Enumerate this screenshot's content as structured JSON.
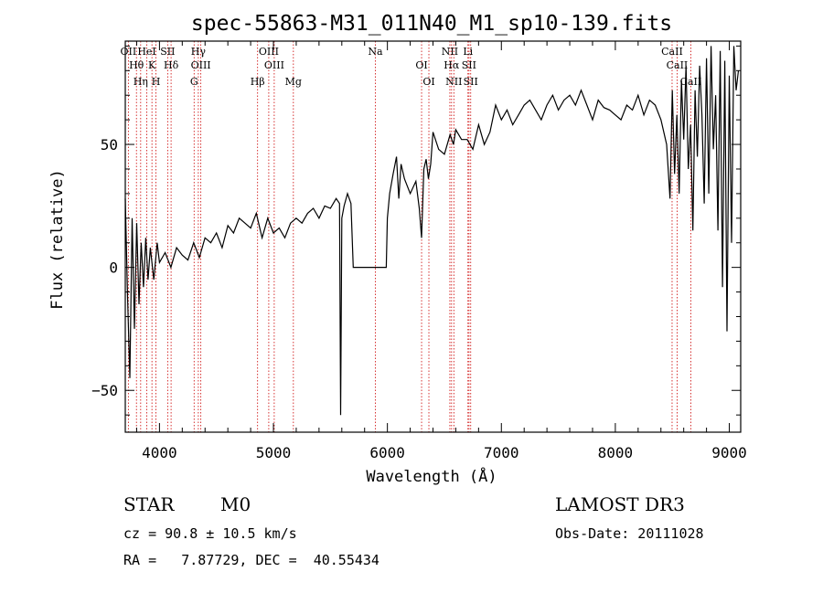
{
  "chart_data": {
    "type": "line",
    "title": "spec-55863-M31_011N40_M1_sp10-139.fits",
    "xlabel": "Wavelength (Å)",
    "ylabel": "Flux (relative)",
    "xlim": [
      3700,
      9100
    ],
    "ylim": [
      -67,
      92
    ],
    "xticks": [
      4000,
      5000,
      6000,
      7000,
      8000,
      9000
    ],
    "yticks": [
      -50,
      0,
      50
    ],
    "series": [
      {
        "name": "spectrum",
        "x": [
          3700,
          3720,
          3740,
          3760,
          3780,
          3800,
          3820,
          3840,
          3860,
          3880,
          3900,
          3920,
          3950,
          3980,
          4000,
          4050,
          4100,
          4150,
          4200,
          4250,
          4300,
          4350,
          4400,
          4450,
          4500,
          4550,
          4600,
          4650,
          4700,
          4750,
          4800,
          4850,
          4900,
          4950,
          5000,
          5050,
          5100,
          5150,
          5200,
          5250,
          5300,
          5350,
          5400,
          5450,
          5500,
          5550,
          5580,
          5590,
          5600,
          5620,
          5650,
          5680,
          5700,
          5750,
          5800,
          5850,
          5900,
          5950,
          5990,
          6000,
          6020,
          6050,
          6080,
          6100,
          6120,
          6150,
          6200,
          6250,
          6280,
          6300,
          6320,
          6340,
          6360,
          6380,
          6400,
          6450,
          6500,
          6550,
          6580,
          6600,
          6650,
          6700,
          6750,
          6800,
          6850,
          6900,
          6950,
          7000,
          7050,
          7100,
          7150,
          7200,
          7250,
          7300,
          7350,
          7400,
          7450,
          7500,
          7550,
          7600,
          7650,
          7700,
          7750,
          7800,
          7850,
          7900,
          7950,
          8000,
          8050,
          8100,
          8150,
          8200,
          8250,
          8300,
          8350,
          8400,
          8450,
          8480,
          8500,
          8520,
          8540,
          8560,
          8580,
          8600,
          8620,
          8640,
          8660,
          8680,
          8700,
          8720,
          8740,
          8760,
          8780,
          8800,
          8820,
          8840,
          8860,
          8880,
          8900,
          8920,
          8940,
          8960,
          8980,
          9000,
          9020,
          9040,
          9060,
          9080
        ],
        "y": [
          28,
          -12,
          -45,
          20,
          -25,
          18,
          -15,
          10,
          -8,
          12,
          -5,
          8,
          -5,
          10,
          2,
          6,
          0,
          8,
          5,
          3,
          10,
          4,
          12,
          10,
          14,
          8,
          17,
          14,
          20,
          18,
          16,
          22,
          12,
          20,
          14,
          16,
          12,
          18,
          20,
          18,
          22,
          24,
          20,
          25,
          24,
          28,
          26,
          -60,
          20,
          25,
          30,
          26,
          0,
          0,
          0,
          0,
          0,
          0,
          0,
          20,
          30,
          38,
          45,
          28,
          42,
          36,
          30,
          35,
          24,
          12,
          40,
          44,
          36,
          42,
          55,
          48,
          46,
          54,
          50,
          56,
          52,
          52,
          48,
          58,
          50,
          55,
          66,
          60,
          64,
          58,
          62,
          66,
          68,
          64,
          60,
          66,
          70,
          64,
          68,
          70,
          66,
          72,
          66,
          60,
          68,
          65,
          64,
          62,
          60,
          66,
          64,
          70,
          62,
          68,
          66,
          60,
          50,
          28,
          72,
          38,
          62,
          30,
          76,
          52,
          82,
          40,
          58,
          15,
          72,
          45,
          82,
          62,
          26,
          85,
          30,
          90,
          48,
          70,
          15,
          88,
          -8,
          84,
          -26,
          78,
          10,
          90,
          72,
          80
        ]
      }
    ],
    "emission_lines": [
      {
        "name": "OII",
        "wavelength": 3727
      },
      {
        "name": "Hθ",
        "wavelength": 3798
      },
      {
        "name": "Hη",
        "wavelength": 3835
      },
      {
        "name": "HeI",
        "wavelength": 3889
      },
      {
        "name": "K",
        "wavelength": 3934
      },
      {
        "name": "H",
        "wavelength": 3969
      },
      {
        "name": "SII",
        "wavelength": 4072
      },
      {
        "name": "Hδ",
        "wavelength": 4102
      },
      {
        "name": "G",
        "wavelength": 4304
      },
      {
        "name": "Hγ",
        "wavelength": 4341
      },
      {
        "name": "OIII",
        "wavelength": 4363
      },
      {
        "name": "Hβ",
        "wavelength": 4861
      },
      {
        "name": "OIII",
        "wavelength": 4959
      },
      {
        "name": "OIII",
        "wavelength": 5007
      },
      {
        "name": "Mg",
        "wavelength": 5175
      },
      {
        "name": "Na",
        "wavelength": 5894
      },
      {
        "name": "OI",
        "wavelength": 6300
      },
      {
        "name": "OI",
        "wavelength": 6364
      },
      {
        "name": "NII",
        "wavelength": 6548
      },
      {
        "name": "Hα",
        "wavelength": 6563
      },
      {
        "name": "NII",
        "wavelength": 6583
      },
      {
        "name": "Li",
        "wavelength": 6707
      },
      {
        "name": "SII",
        "wavelength": 6716
      },
      {
        "name": "SII",
        "wavelength": 6731
      },
      {
        "name": "CaII",
        "wavelength": 8498
      },
      {
        "name": "CaII",
        "wavelength": 8542
      },
      {
        "name": "CaII",
        "wavelength": 8662
      }
    ],
    "colors": {
      "line": "#000000",
      "marker": "#cc0000"
    }
  },
  "info": {
    "class": "STAR",
    "subclass": "M0",
    "survey": "LAMOST DR3",
    "redshift": "cz = 90.8 ± 10.5 km/s",
    "obs_date": "Obs-Date: 20111028",
    "coords": "RA =   7.87729, DEC =  40.55434"
  }
}
